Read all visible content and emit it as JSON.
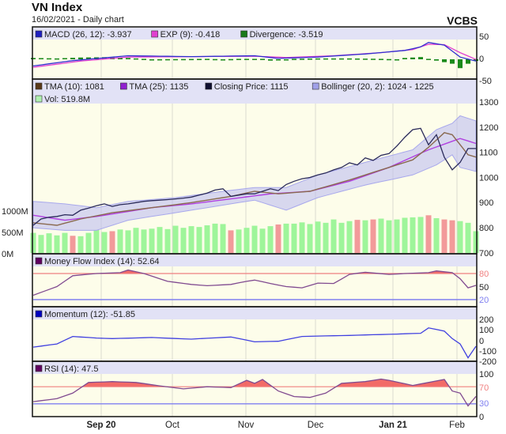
{
  "header": {
    "title": "VN Index",
    "subtitle": "16/02/2021 - Daily chart",
    "brand": "VCBS"
  },
  "colors": {
    "panel_bg": "#fdfdea",
    "legend_bg": "#e2e2f6",
    "up": "#9ef59a",
    "down": "#f29a9a",
    "close": "#2a2a5a",
    "tma10": "#8a6a50",
    "tma25": "#b040e0",
    "boll_fill": "#b8b8f0",
    "macd": "#3030d0",
    "exp": "#e040d0",
    "divergence": "#1a8a1a",
    "mfi": "#804a90",
    "momentum": "#4040e0",
    "rsi": "#804a90",
    "overbought": "#f05050",
    "upper_line": "#f08080",
    "lower_line": "#8080f0"
  },
  "chart_data": [
    {
      "type": "line",
      "name": "MACD",
      "legend": [
        {
          "label": "MACD (26, 12): -3.937",
          "color": "#2020c0"
        },
        {
          "label": "EXP (9): -0.418",
          "color": "#e040d0"
        },
        {
          "label": "Divergence: -3.519",
          "color": "#1a7a1a"
        }
      ],
      "yticks": [
        "50",
        "0",
        "-50"
      ],
      "ylim": [
        -50,
        50
      ],
      "macd": [
        [
          0,
          -15
        ],
        [
          5,
          -3
        ],
        [
          12,
          8
        ],
        [
          20,
          6
        ],
        [
          28,
          8
        ],
        [
          31,
          2
        ],
        [
          36,
          5
        ],
        [
          42,
          12
        ],
        [
          47,
          20
        ],
        [
          49,
          28
        ],
        [
          50,
          38
        ],
        [
          52,
          32
        ],
        [
          54,
          5
        ],
        [
          56,
          -3.9
        ]
      ],
      "exp": [
        [
          0,
          -18
        ],
        [
          6,
          -4
        ],
        [
          12,
          5
        ],
        [
          20,
          6
        ],
        [
          28,
          7
        ],
        [
          32,
          4
        ],
        [
          38,
          8
        ],
        [
          44,
          15
        ],
        [
          48,
          22
        ],
        [
          50,
          34
        ],
        [
          52,
          33
        ],
        [
          54,
          15
        ],
        [
          56,
          -0.4
        ]
      ],
      "divergence": [
        [
          0,
          3
        ],
        [
          3,
          2
        ],
        [
          6,
          4
        ],
        [
          10,
          5
        ],
        [
          13,
          2
        ],
        [
          15,
          0
        ],
        [
          22,
          1
        ],
        [
          24,
          0
        ],
        [
          26,
          1
        ],
        [
          29,
          1
        ],
        [
          30,
          -3
        ],
        [
          33,
          1
        ],
        [
          36,
          2
        ],
        [
          40,
          2
        ],
        [
          44,
          1
        ],
        [
          46,
          0
        ],
        [
          47,
          3
        ],
        [
          49,
          5
        ],
        [
          51,
          -3
        ],
        [
          53,
          -10
        ],
        [
          54,
          -20
        ],
        [
          55,
          -10
        ],
        [
          56,
          -3.5
        ]
      ]
    },
    {
      "type": "line",
      "name": "Price",
      "legend": [
        {
          "label": "TMA (10): 1081",
          "color": "#5a3a1a"
        },
        {
          "label": "TMA (25): 1135",
          "color": "#9020d0"
        },
        {
          "label": "Closing Price: 1115",
          "color": "#101030"
        },
        {
          "label": "Bollinger (20, 2): 1024 - 1225",
          "color": "#a0a0e8"
        },
        {
          "label": "Vol: 519.8M",
          "color": "#b0f0b0"
        }
      ],
      "yticks": [
        "1300",
        "1200",
        "1100",
        "1000",
        "900",
        "800",
        "700"
      ],
      "ylim": [
        700,
        1300
      ],
      "vol_ticks": [
        "1000M",
        "500M",
        "0M"
      ],
      "vol_lim": [
        0,
        1000
      ],
      "close": [
        810,
        835,
        842,
        845,
        852,
        850,
        870,
        878,
        888,
        895,
        885,
        892,
        895,
        900,
        905,
        908,
        910,
        912,
        915,
        918,
        922,
        930,
        938,
        950,
        955,
        925,
        930,
        935,
        935,
        945,
        955,
        948,
        972,
        985,
        995,
        1000,
        1010,
        1018,
        1030,
        1040,
        1058,
        1050,
        1078,
        1068,
        1088,
        1095,
        1125,
        1160,
        1190,
        1195,
        1130,
        1170,
        1080,
        1030,
        1060,
        1115,
        1115
      ],
      "tma10": [
        [
          0,
          820
        ],
        [
          3,
          810
        ],
        [
          6,
          835
        ],
        [
          10,
          860
        ],
        [
          15,
          880
        ],
        [
          20,
          900
        ],
        [
          25,
          925
        ],
        [
          28,
          945
        ],
        [
          31,
          935
        ],
        [
          35,
          945
        ],
        [
          40,
          990
        ],
        [
          45,
          1040
        ],
        [
          48,
          1070
        ],
        [
          50,
          1120
        ],
        [
          52,
          1178
        ],
        [
          53,
          1170
        ],
        [
          55,
          1090
        ],
        [
          56,
          1081
        ]
      ],
      "tma25": [
        [
          0,
          850
        ],
        [
          4,
          830
        ],
        [
          8,
          845
        ],
        [
          15,
          880
        ],
        [
          20,
          895
        ],
        [
          25,
          915
        ],
        [
          30,
          935
        ],
        [
          35,
          945
        ],
        [
          40,
          985
        ],
        [
          45,
          1040
        ],
        [
          50,
          1110
        ],
        [
          54,
          1155
        ],
        [
          56,
          1135
        ]
      ],
      "boll_upper": [
        [
          0,
          905
        ],
        [
          4,
          895
        ],
        [
          8,
          880
        ],
        [
          12,
          905
        ],
        [
          18,
          920
        ],
        [
          24,
          945
        ],
        [
          28,
          960
        ],
        [
          32,
          960
        ],
        [
          36,
          1010
        ],
        [
          42,
          1060
        ],
        [
          48,
          1110
        ],
        [
          51,
          1190
        ],
        [
          53,
          1215
        ],
        [
          54,
          1245
        ],
        [
          56,
          1225
        ]
      ],
      "boll_lower": [
        [
          0,
          800
        ],
        [
          4,
          790
        ],
        [
          8,
          790
        ],
        [
          12,
          830
        ],
        [
          18,
          860
        ],
        [
          24,
          890
        ],
        [
          28,
          910
        ],
        [
          32,
          870
        ],
        [
          36,
          920
        ],
        [
          42,
          970
        ],
        [
          48,
          1010
        ],
        [
          51,
          1050
        ],
        [
          53,
          1090
        ],
        [
          54,
          1040
        ],
        [
          56,
          1024
        ]
      ],
      "volume": [
        480,
        430,
        470,
        420,
        480,
        410,
        400,
        480,
        550,
        500,
        520,
        560,
        540,
        600,
        560,
        580,
        620,
        570,
        650,
        600,
        640,
        620,
        660,
        700,
        690,
        540,
        560,
        600,
        650,
        580,
        640,
        680,
        700,
        700,
        730,
        690,
        750,
        720,
        800,
        720,
        760,
        790,
        780,
        800,
        820,
        780,
        800,
        840,
        850,
        860,
        900,
        830,
        800,
        780,
        760,
        720,
        520
      ]
    },
    {
      "type": "line",
      "name": "Money Flow Index",
      "legend": [
        {
          "label": "Money Flow Index (14): 52.64",
          "color": "#600060"
        }
      ],
      "yticks": [
        "80",
        "50",
        "20"
      ],
      "ylim": [
        0,
        100
      ],
      "threshold_high": 80,
      "threshold_low": 20,
      "values": [
        [
          0,
          30
        ],
        [
          3,
          50
        ],
        [
          5,
          75
        ],
        [
          8,
          80
        ],
        [
          11,
          82
        ],
        [
          12,
          88
        ],
        [
          14,
          80
        ],
        [
          17,
          62
        ],
        [
          20,
          55
        ],
        [
          22,
          52
        ],
        [
          25,
          55
        ],
        [
          27,
          62
        ],
        [
          28,
          65
        ],
        [
          30,
          57
        ],
        [
          32,
          50
        ],
        [
          34,
          47
        ],
        [
          36,
          58
        ],
        [
          38,
          57
        ],
        [
          40,
          78
        ],
        [
          42,
          83
        ],
        [
          45,
          78
        ],
        [
          47,
          80
        ],
        [
          50,
          82
        ],
        [
          51,
          86
        ],
        [
          53,
          82
        ],
        [
          54,
          68
        ],
        [
          55,
          47
        ],
        [
          56,
          52.64
        ]
      ]
    },
    {
      "type": "line",
      "name": "Momentum",
      "legend": [
        {
          "label": "Momentum (12): -51.85",
          "color": "#0000c0"
        }
      ],
      "yticks": [
        "200",
        "100",
        "0",
        "-100",
        "-200"
      ],
      "ylim": [
        -200,
        200
      ],
      "values": [
        [
          0,
          -60
        ],
        [
          3,
          -30
        ],
        [
          5,
          40
        ],
        [
          8,
          25
        ],
        [
          10,
          20
        ],
        [
          15,
          30
        ],
        [
          20,
          15
        ],
        [
          25,
          35
        ],
        [
          28,
          -10
        ],
        [
          31,
          -5
        ],
        [
          34,
          40
        ],
        [
          40,
          50
        ],
        [
          45,
          60
        ],
        [
          49,
          70
        ],
        [
          50,
          120
        ],
        [
          52,
          90
        ],
        [
          53,
          20
        ],
        [
          54,
          -30
        ],
        [
          55,
          -160
        ],
        [
          55.6,
          -60
        ],
        [
          56,
          -51.85
        ]
      ]
    },
    {
      "type": "line",
      "name": "RSI",
      "legend": [
        {
          "label": "RSI (14): 47.5",
          "color": "#600060"
        }
      ],
      "yticks": [
        "100",
        "70",
        "30",
        "0"
      ],
      "ylim": [
        0,
        100
      ],
      "threshold_high": 70,
      "threshold_low": 30,
      "values": [
        [
          0,
          35
        ],
        [
          3,
          42
        ],
        [
          5,
          55
        ],
        [
          7,
          80
        ],
        [
          10,
          82
        ],
        [
          13,
          80
        ],
        [
          16,
          72
        ],
        [
          19,
          65
        ],
        [
          22,
          70
        ],
        [
          25,
          68
        ],
        [
          27,
          85
        ],
        [
          28,
          78
        ],
        [
          29,
          87
        ],
        [
          31,
          60
        ],
        [
          33,
          47
        ],
        [
          35,
          45
        ],
        [
          37,
          55
        ],
        [
          39,
          78
        ],
        [
          42,
          82
        ],
        [
          44,
          88
        ],
        [
          45,
          85
        ],
        [
          48,
          73
        ],
        [
          50,
          80
        ],
        [
          52,
          87
        ],
        [
          53,
          60
        ],
        [
          54,
          55
        ],
        [
          55,
          25
        ],
        [
          56,
          47.5
        ]
      ]
    }
  ],
  "xaxis": {
    "labels": [
      "Sep 20",
      "Oct",
      "Nov",
      "Dec",
      "Jan 21",
      "Feb"
    ],
    "bold": [
      true,
      false,
      false,
      false,
      true,
      false
    ]
  }
}
